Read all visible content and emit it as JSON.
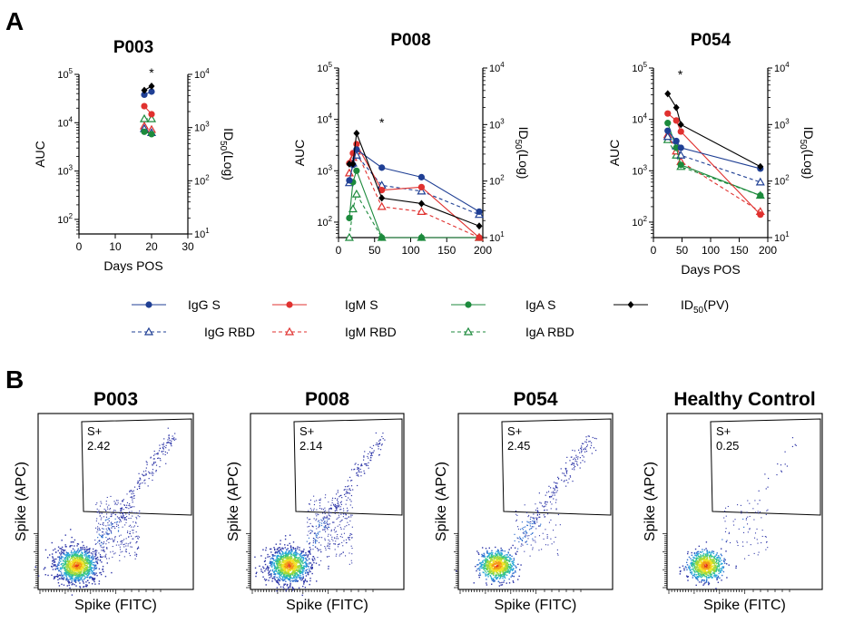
{
  "panel_labels": {
    "a": "A",
    "b": "B"
  },
  "colors": {
    "igg": "#1f3f94",
    "igm": "#e0312f",
    "iga": "#1c8a3c",
    "id50": "#000000"
  },
  "legend": [
    {
      "label": "IgG S",
      "color": "#1f3f94",
      "marker": "circle",
      "dashed": false
    },
    {
      "label": "IgM S",
      "color": "#e0312f",
      "marker": "circle",
      "dashed": false
    },
    {
      "label": "IgA S",
      "color": "#1c8a3c",
      "marker": "circle",
      "dashed": false
    },
    {
      "label": "ID50(PV)",
      "color": "#000000",
      "marker": "diamond",
      "dashed": false
    },
    {
      "label": "IgG RBD",
      "color": "#1f3f94",
      "marker": "triangle-open",
      "dashed": true
    },
    {
      "label": "IgM RBD",
      "color": "#e0312f",
      "marker": "triangle-open",
      "dashed": true
    },
    {
      "label": "IgA RBD",
      "color": "#1c8a3c",
      "marker": "triangle-open",
      "dashed": true
    }
  ],
  "chart_data": [
    {
      "type": "line",
      "title": "P003",
      "xlabel": "Days POS",
      "ylabel": "AUC",
      "y2label": "ID50(Log)",
      "xlim": [
        0,
        30
      ],
      "xticks": [
        "0",
        "10",
        "20",
        "30"
      ],
      "ylim": [
        50,
        100000
      ],
      "yscale": "log",
      "yticks": [
        "10²",
        "10³",
        "10⁴",
        "10⁵"
      ],
      "y2lim": [
        10,
        10000
      ],
      "y2ticks": [
        "10¹",
        "10²",
        "10³",
        "10⁴"
      ],
      "annotations": [
        {
          "text": "*",
          "x": 20,
          "y": 100000
        }
      ],
      "series": [
        {
          "name": "IgG S",
          "x": [
            18,
            20
          ],
          "y": [
            38000,
            44000
          ]
        },
        {
          "name": "IgM S",
          "x": [
            18,
            20
          ],
          "y": [
            22000,
            15000
          ]
        },
        {
          "name": "IgA S",
          "x": [
            18,
            20
          ],
          "y": [
            6500,
            5800
          ]
        },
        {
          "name": "IgG RBD",
          "x": [
            18,
            20
          ],
          "y": [
            7500,
            6200
          ]
        },
        {
          "name": "IgM RBD",
          "x": [
            18,
            20
          ],
          "y": [
            8500,
            7200
          ]
        },
        {
          "name": "IgA RBD",
          "x": [
            18,
            20
          ],
          "y": [
            12000,
            12000
          ]
        },
        {
          "name": "ID50(PV)",
          "x": [
            18,
            20
          ],
          "y2": [
            5000,
            6000
          ]
        }
      ]
    },
    {
      "type": "line",
      "title": "P008",
      "xlabel": "",
      "ylabel": "AUC",
      "y2label": "ID50(Log)",
      "xlim": [
        0,
        200
      ],
      "xticks": [
        "0",
        "50",
        "100",
        "150",
        "200"
      ],
      "ylim": [
        50,
        100000
      ],
      "yscale": "log",
      "yticks": [
        "10²",
        "10³",
        "10⁴",
        "10⁵"
      ],
      "y2lim": [
        10,
        10000
      ],
      "y2ticks": [
        "10¹",
        "10²",
        "10³",
        "10⁴"
      ],
      "annotations": [
        {
          "text": "*",
          "x": 60,
          "y": 8000
        }
      ],
      "series": [
        {
          "name": "IgG S",
          "x": [
            15,
            20,
            25,
            60,
            115,
            195
          ],
          "y": [
            650,
            1300,
            2600,
            1150,
            750,
            160
          ]
        },
        {
          "name": "IgM S",
          "x": [
            15,
            20,
            25,
            60,
            115,
            195
          ],
          "y": [
            1400,
            2200,
            3300,
            420,
            480,
            50
          ]
        },
        {
          "name": "IgA S",
          "x": [
            15,
            20,
            25,
            60,
            115,
            195
          ],
          "y": [
            120,
            600,
            1000,
            50,
            50,
            50
          ]
        },
        {
          "name": "IgG RBD",
          "x": [
            15,
            20,
            25,
            60,
            115,
            195
          ],
          "y": [
            580,
            1400,
            2000,
            520,
            400,
            140
          ]
        },
        {
          "name": "IgM RBD",
          "x": [
            15,
            20,
            25,
            60,
            115,
            195
          ],
          "y": [
            900,
            1800,
            2400,
            200,
            160,
            50
          ]
        },
        {
          "name": "IgA RBD",
          "x": [
            15,
            20,
            25,
            60,
            115,
            195
          ],
          "y": [
            50,
            180,
            350,
            50,
            50,
            50
          ]
        },
        {
          "name": "ID50(PV)",
          "x": [
            15,
            20,
            25,
            60,
            115,
            195
          ],
          "y2": [
            200,
            200,
            700,
            50,
            40,
            16
          ]
        }
      ]
    },
    {
      "type": "line",
      "title": "P054",
      "xlabel": "Days POS",
      "ylabel": "AUC",
      "y2label": "ID50(Log)",
      "xlim": [
        0,
        200
      ],
      "xticks": [
        "0",
        "50",
        "100",
        "150",
        "200"
      ],
      "ylim": [
        50,
        100000
      ],
      "yscale": "log",
      "yticks": [
        "10²",
        "10³",
        "10⁴",
        "10⁵"
      ],
      "y2lim": [
        10,
        10000
      ],
      "y2ticks": [
        "10¹",
        "10²",
        "10³",
        "10⁴"
      ],
      "annotations": [
        {
          "text": "*",
          "x": 47,
          "y": 70000
        }
      ],
      "series": [
        {
          "name": "IgG S",
          "x": [
            25,
            40,
            48,
            187
          ],
          "y": [
            6000,
            3800,
            2800,
            1100
          ]
        },
        {
          "name": "IgM S",
          "x": [
            25,
            40,
            48,
            187
          ],
          "y": [
            13000,
            9500,
            5800,
            140
          ]
        },
        {
          "name": "IgA S",
          "x": [
            25,
            40,
            48,
            187
          ],
          "y": [
            8500,
            2800,
            1300,
            330
          ]
        },
        {
          "name": "IgG RBD",
          "x": [
            25,
            40,
            48,
            187
          ],
          "y": [
            4600,
            3000,
            2000,
            600
          ]
        },
        {
          "name": "IgM RBD",
          "x": [
            25,
            40,
            48,
            187
          ],
          "y": [
            5000,
            2400,
            1500,
            160
          ]
        },
        {
          "name": "IgA RBD",
          "x": [
            25,
            40,
            48,
            187
          ],
          "y": [
            4000,
            2000,
            1200,
            330
          ]
        },
        {
          "name": "ID50(PV)",
          "x": [
            25,
            40,
            48,
            187
          ],
          "y2": [
            3500,
            2000,
            1000,
            180
          ]
        }
      ]
    }
  ],
  "flow": {
    "xlabel": "Spike (FITC)",
    "ylabel": "Spike (APC)",
    "panels": [
      {
        "title": "P003",
        "gate_label": "S+",
        "gate_value": "2.42",
        "positive_fraction": 0.0242
      },
      {
        "title": "P008",
        "gate_label": "S+",
        "gate_value": "2.14",
        "positive_fraction": 0.0214
      },
      {
        "title": "P054",
        "gate_label": "S+",
        "gate_value": "2.45",
        "positive_fraction": 0.0245
      },
      {
        "title": "Healthy Control",
        "gate_label": "S+",
        "gate_value": "0.25",
        "positive_fraction": 0.0025
      }
    ]
  }
}
